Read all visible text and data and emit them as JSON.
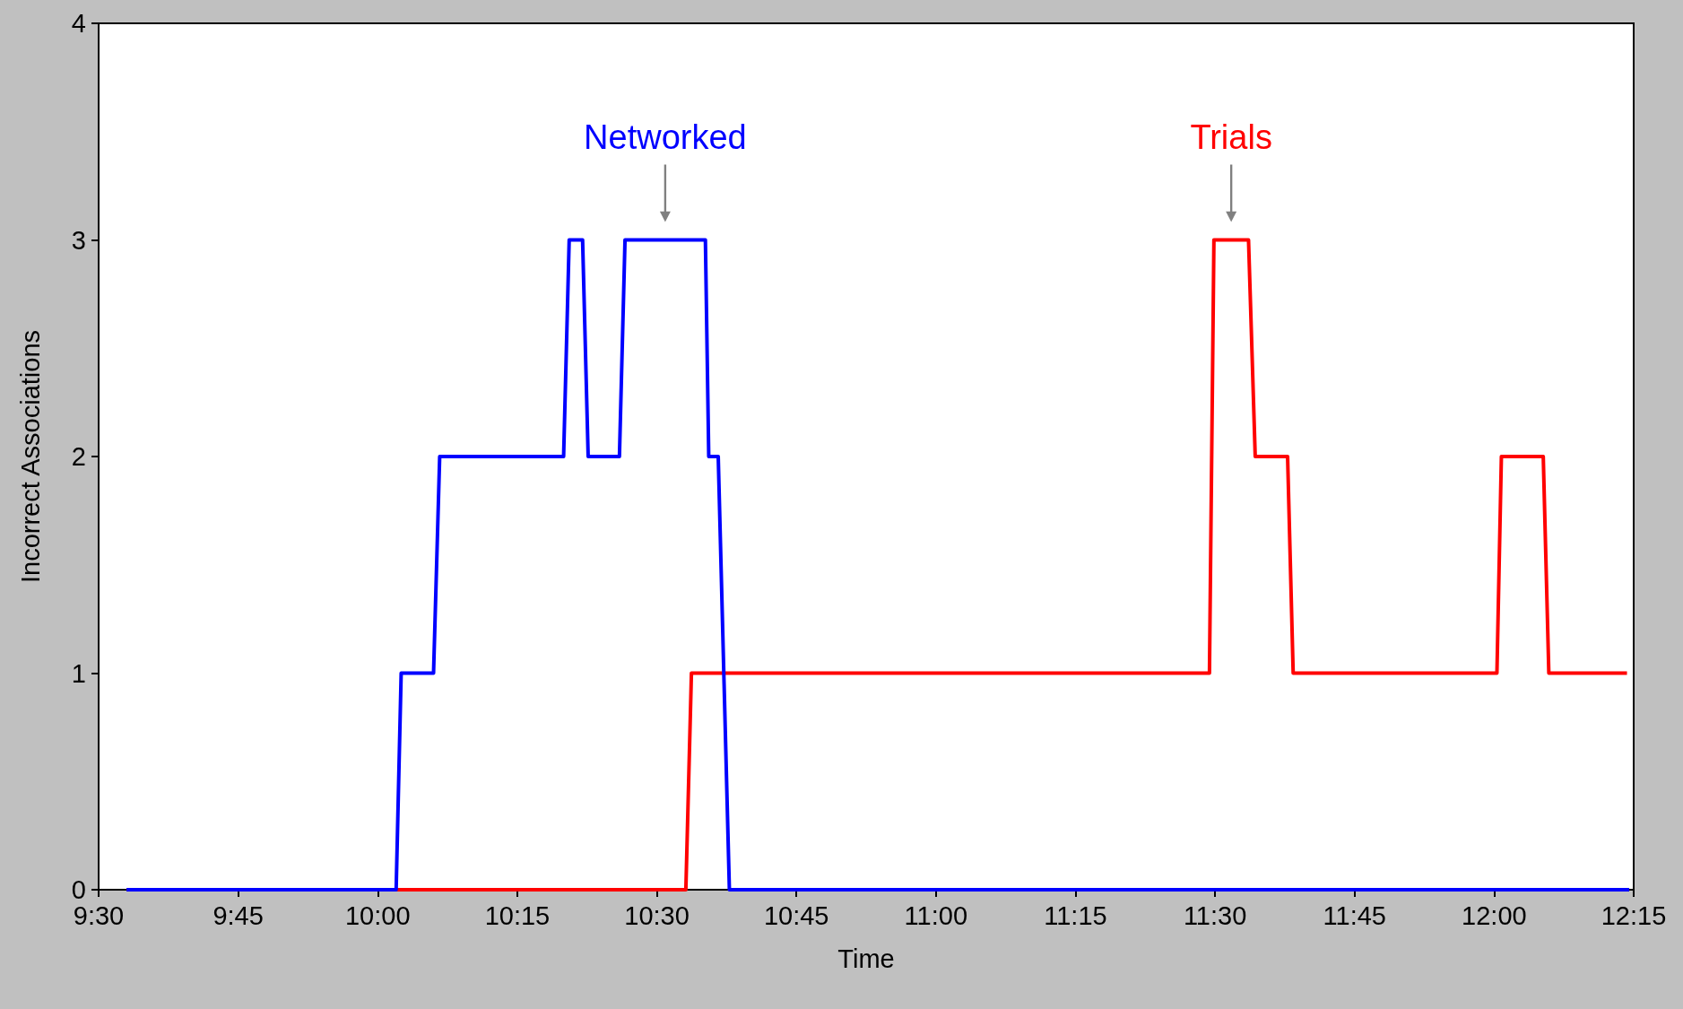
{
  "chart_data": {
    "type": "line",
    "xlabel": "Time",
    "ylabel": "Incorrect Associations",
    "xlim": [
      9.5,
      12.25
    ],
    "xticks": [
      {
        "value": 9.5,
        "label": "9:30"
      },
      {
        "value": 9.75,
        "label": "9:45"
      },
      {
        "value": 10,
        "label": "10:00"
      },
      {
        "value": 10.25,
        "label": "10:15"
      },
      {
        "value": 10.5,
        "label": "10:30"
      },
      {
        "value": 10.75,
        "label": "10:45"
      },
      {
        "value": 11,
        "label": "11:00"
      },
      {
        "value": 11.25,
        "label": "11:15"
      },
      {
        "value": 11.5,
        "label": "11:30"
      },
      {
        "value": 11.75,
        "label": "11:45"
      },
      {
        "value": 12,
        "label": "12:00"
      },
      {
        "value": 12.25,
        "label": "12:15"
      }
    ],
    "ylim": [
      0,
      4
    ],
    "yticks": [
      0,
      1,
      2,
      3,
      4
    ],
    "grid": false,
    "legend": false,
    "marker": "none",
    "line_style": "solid",
    "series": [
      {
        "name": "Trials",
        "color": "#ff0000",
        "x": [
          9.55,
          10.552,
          10.562,
          11.49,
          11.498,
          11.56,
          11.572,
          11.63,
          11.64,
          12.005,
          12.013,
          12.088,
          12.098,
          12.238
        ],
        "values": [
          0,
          0,
          1,
          1,
          3,
          3,
          2,
          2,
          1,
          1,
          2,
          2,
          1,
          1
        ]
      },
      {
        "name": "Networked",
        "color": "#0000ff",
        "x": [
          9.55,
          10.033,
          10.042,
          10.1,
          10.111,
          10.333,
          10.343,
          10.367,
          10.377,
          10.433,
          10.443,
          10.587,
          10.593,
          10.61,
          10.63,
          12.242
        ],
        "values": [
          0,
          0,
          1,
          1,
          2,
          2,
          3,
          3,
          2,
          2,
          3,
          3,
          2,
          2,
          0,
          0
        ]
      }
    ]
  }
}
